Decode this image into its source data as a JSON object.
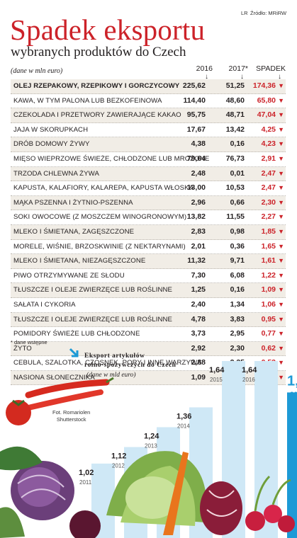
{
  "header": {
    "source_code": "LR",
    "source": "Źródło: MRiRW",
    "title": "Spadek eksportu",
    "subtitle": "wybranych produktów do Czech",
    "unit": "(dane w mln euro)"
  },
  "table": {
    "columns": [
      "2016",
      "2017*",
      "SPADEK"
    ],
    "rows": [
      {
        "name": "OLEJ RZEPAKOWY, RZEPIKOWY I GORCZYCOWY",
        "v2016": "225,62",
        "v2017": "51,25",
        "drop": "174,36"
      },
      {
        "name": "KAWA, W TYM PALONA LUB BEZKOFEINOWA",
        "v2016": "114,40",
        "v2017": "48,60",
        "drop": "65,80"
      },
      {
        "name": "CZEKOLADA I PRZETWORY ZAWIERAJĄCE KAKAO",
        "v2016": "95,75",
        "v2017": "48,71",
        "drop": "47,04"
      },
      {
        "name": "JAJA W SKORUPKACH",
        "v2016": "17,67",
        "v2017": "13,42",
        "drop": "4,25"
      },
      {
        "name": "DRÓB DOMOWY ŻYWY",
        "v2016": "4,38",
        "v2017": "0,16",
        "drop": "4,23"
      },
      {
        "name": "MIĘSO WIEPRZOWE ŚWIEŻE, CHŁODZONE LUB MROŻONE",
        "v2016": "79,64",
        "v2017": "76,73",
        "drop": "2,91"
      },
      {
        "name": "TRZODA CHLEWNA ŻYWA",
        "v2016": "2,48",
        "v2017": "0,01",
        "drop": "2,47"
      },
      {
        "name": "KAPUSTA, KALAFIORY, KALAREPA, KAPUSTA WŁOSKA",
        "v2016": "13,00",
        "v2017": "10,53",
        "drop": "2,47"
      },
      {
        "name": "MĄKA PSZENNA I ŻYTNIO-PSZENNA",
        "v2016": "2,96",
        "v2017": "0,66",
        "drop": "2,30"
      },
      {
        "name": "SOKI OWOCOWE (Z MOSZCZEM WINOGRONOWYM)",
        "v2016": "13,82",
        "v2017": "11,55",
        "drop": "2,27"
      },
      {
        "name": "MLEKO I ŚMIETANA, ZAGĘSZCZONE",
        "v2016": "2,83",
        "v2017": "0,98",
        "drop": "1,85"
      },
      {
        "name": "MORELE, WIŚNIE, BRZOSKWINIE (Z NEKTARYNAMI)",
        "v2016": "2,01",
        "v2017": "0,36",
        "drop": "1,65"
      },
      {
        "name": "MLEKO I ŚMIETANA, NIEZAGĘSZCZONE",
        "v2016": "11,32",
        "v2017": "9,71",
        "drop": "1,61"
      },
      {
        "name": "PIWO OTRZYMYWANE ZE SŁODU",
        "v2016": "7,30",
        "v2017": "6,08",
        "drop": "1,22"
      },
      {
        "name": "TŁUSZCZE I OLEJE ZWIERZĘCE LUB ROŚLINNE",
        "v2016": "1,25",
        "v2017": "0,16",
        "drop": "1,09"
      },
      {
        "name": "SAŁATA I CYKORIA",
        "v2016": "2,40",
        "v2017": "1,34",
        "drop": "1,06"
      },
      {
        "name": "TŁUSZCZE I OLEJE ZWIERZĘCE LUB ROŚLINNE",
        "v2016": "4,78",
        "v2017": "3,83",
        "drop": "0,95"
      },
      {
        "name": "POMIDORY ŚWIEŻE LUB CHŁODZONE",
        "v2016": "3,73",
        "v2017": "2,95",
        "drop": "0,77"
      },
      {
        "name": "ŻYTO",
        "v2016": "2,92",
        "v2017": "2,30",
        "drop": "0,62"
      },
      {
        "name": "CEBULA, SZALOTKA, CZOSNEK, PORY I INNE WARZYWA",
        "v2016": "2,88",
        "v2017": "2,35",
        "drop": "0,53"
      },
      {
        "name": "NASIONA SŁONECZNIKA",
        "v2016": "1,09",
        "v2017": "0,57",
        "drop": "0,52"
      }
    ]
  },
  "note": "* dane wstępne",
  "photo_credit": [
    "Fot. Romariolen",
    "Shutterstock"
  ],
  "chart_data": {
    "type": "bar",
    "title_lines": [
      "Eksport artykułów",
      "rolno-spożywczych do Czech"
    ],
    "unit": "(dane w mld euro)",
    "categories": [
      "2011",
      "2012",
      "2013",
      "2014",
      "2015",
      "2016",
      "2017*"
    ],
    "values": [
      1.02,
      1.12,
      1.24,
      1.36,
      1.64,
      1.64,
      1.45
    ],
    "value_labels": [
      "1,02",
      "1,12",
      "1,24",
      "1,36",
      "1,64",
      "1,64",
      "1,45"
    ],
    "ylim": [
      0.6,
      1.64
    ],
    "colors": {
      "bar": "#cfe8f6",
      "bar_highlight": "#1d9ad6",
      "label": "#231f20",
      "label_highlight": "#1d9ad6"
    }
  },
  "colors": {
    "accent_red": "#cc2229",
    "shade_row": "#f1ede6",
    "accent_blue": "#1d9ad6"
  }
}
